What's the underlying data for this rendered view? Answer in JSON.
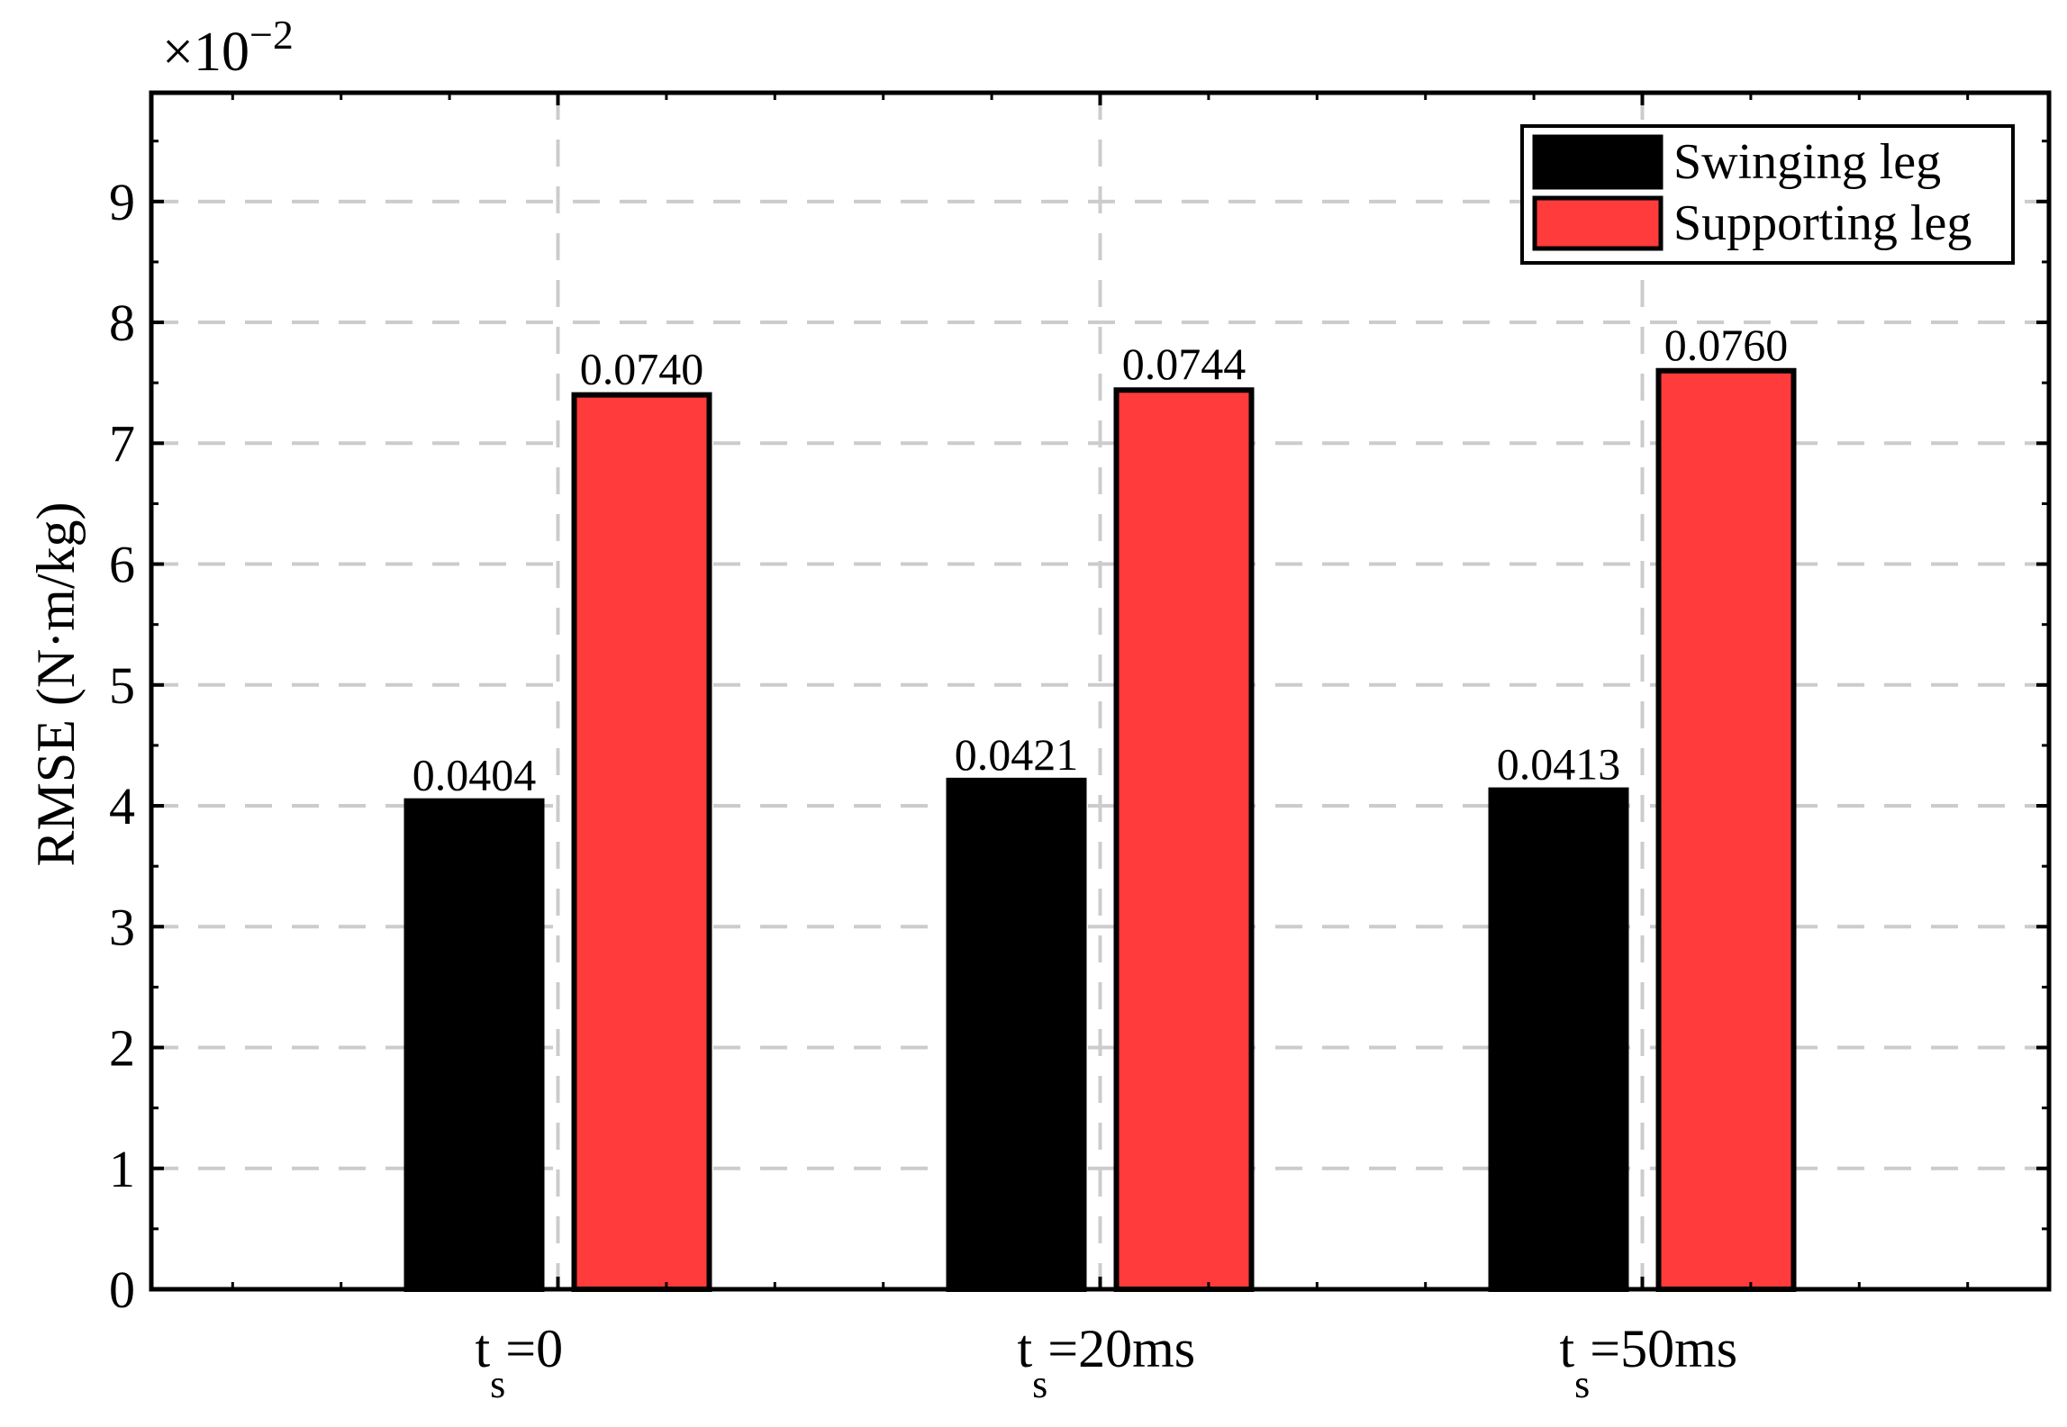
{
  "chart_data": {
    "type": "bar",
    "categories": [
      "0",
      "20ms",
      "50ms"
    ],
    "category_prefix": "t",
    "category_subscript": "s",
    "category_eq": "=",
    "series": [
      {
        "name": "Swinging leg",
        "color": "#000000",
        "values": [
          0.0404,
          0.0421,
          0.0413
        ],
        "labels": [
          "0.0404",
          "0.0421",
          "0.0413"
        ]
      },
      {
        "name": "Supporting leg",
        "color": "#ff3b3b",
        "values": [
          0.074,
          0.0744,
          0.076
        ],
        "labels": [
          "0.0740",
          "0.0744",
          "0.0760"
        ]
      }
    ],
    "ylabel": "RMSE (N·m/kg)",
    "xlabel": "",
    "title": "",
    "ylim": [
      0,
      0.099
    ],
    "yticks": [
      0,
      0.01,
      0.02,
      0.03,
      0.04,
      0.05,
      0.06,
      0.07,
      0.08,
      0.09
    ],
    "ytick_labels": [
      "0",
      "1",
      "2",
      "3",
      "4",
      "5",
      "6",
      "7",
      "8",
      "9"
    ],
    "y_multiplier": {
      "base": "×10",
      "exponent": "−2"
    },
    "grid": true,
    "legend_position": "top-right"
  }
}
